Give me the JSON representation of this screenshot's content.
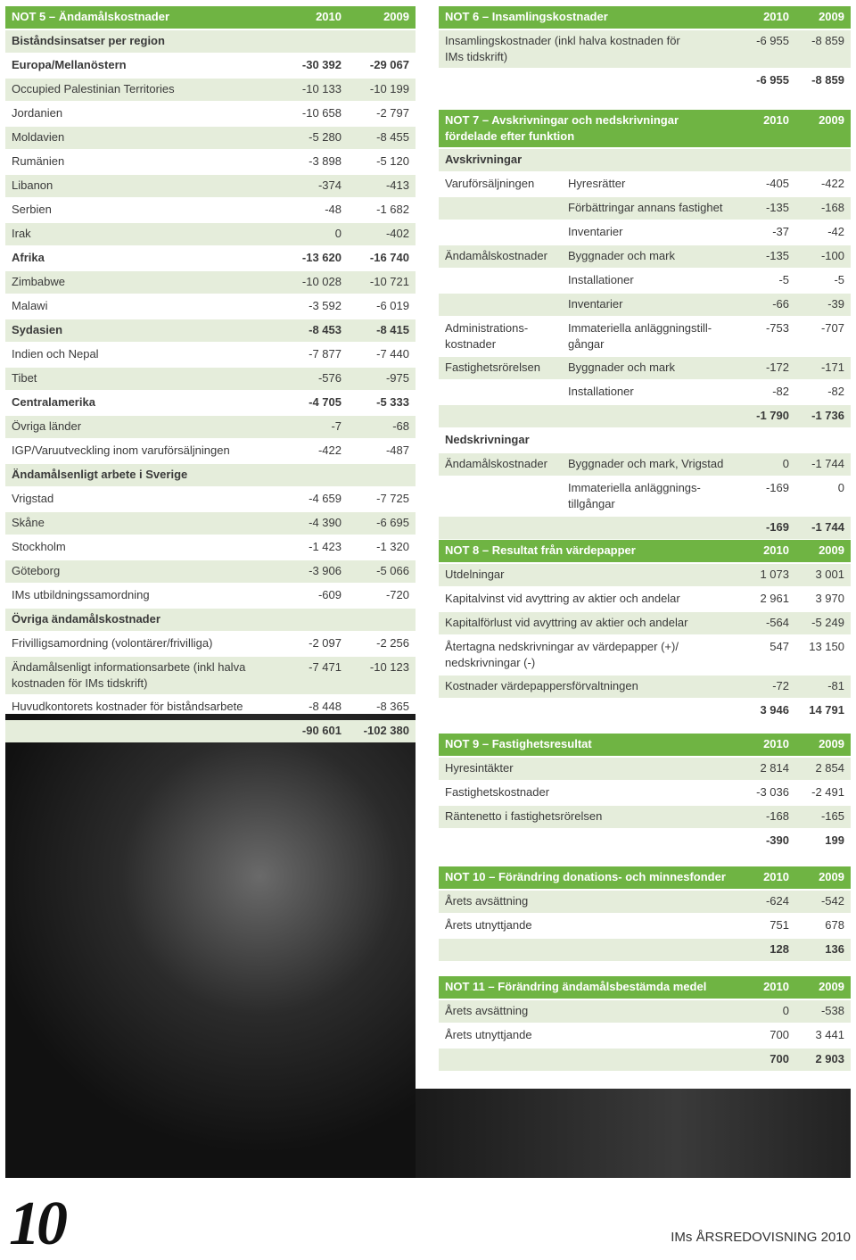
{
  "not5": {
    "title": "NOT 5 – Ändamålskostnader",
    "years": [
      "2010",
      "2009"
    ],
    "rows": [
      {
        "label": "Biståndsinsatser per region",
        "bold": true
      },
      {
        "label": "Europa/Mellanöstern",
        "values": [
          "-30 392",
          "-29 067"
        ],
        "bold": true
      },
      {
        "label": "Occupied Palestinian Territories",
        "values": [
          "-10 133",
          "-10 199"
        ]
      },
      {
        "label": "Jordanien",
        "values": [
          "-10 658",
          "-2 797"
        ]
      },
      {
        "label": "Moldavien",
        "values": [
          "-5 280",
          "-8 455"
        ]
      },
      {
        "label": "Rumänien",
        "values": [
          "-3 898",
          "-5 120"
        ]
      },
      {
        "label": "Libanon",
        "values": [
          "-374",
          "-413"
        ]
      },
      {
        "label": "Serbien",
        "values": [
          "-48",
          "-1 682"
        ]
      },
      {
        "label": "Irak",
        "values": [
          "0",
          "-402"
        ]
      },
      {
        "label": "Afrika",
        "values": [
          "-13 620",
          "-16 740"
        ],
        "bold": true
      },
      {
        "label": "Zimbabwe",
        "values": [
          "-10 028",
          "-10 721"
        ]
      },
      {
        "label": "Malawi",
        "values": [
          "-3 592",
          "-6 019"
        ]
      },
      {
        "label": "Sydasien",
        "values": [
          "-8 453",
          "-8 415"
        ],
        "bold": true
      },
      {
        "label": "Indien och Nepal",
        "values": [
          "-7 877",
          "-7 440"
        ]
      },
      {
        "label": "Tibet",
        "values": [
          "-576",
          "-975"
        ]
      },
      {
        "label": "Centralamerika",
        "values": [
          "-4 705",
          "-5 333"
        ],
        "bold": true
      },
      {
        "label": "Övriga länder",
        "values": [
          "-7",
          "-68"
        ]
      },
      {
        "label": "IGP/Varuutveckling inom varuförsäljningen",
        "values": [
          "-422",
          "-487"
        ]
      },
      {
        "label": "Ändamålsenligt arbete i Sverige",
        "bold": true
      },
      {
        "label": "Vrigstad",
        "values": [
          "-4 659",
          "-7 725"
        ]
      },
      {
        "label": "Skåne",
        "values": [
          "-4 390",
          "-6 695"
        ]
      },
      {
        "label": "Stockholm",
        "values": [
          "-1 423",
          "-1 320"
        ]
      },
      {
        "label": "Göteborg",
        "values": [
          "-3 906",
          "-5 066"
        ]
      },
      {
        "label": "IMs utbildningssamordning",
        "values": [
          "-609",
          "-720"
        ]
      },
      {
        "label": "Övriga ändamålskostnader",
        "bold": true
      },
      {
        "label": "Frivilligsamordning (volontärer/frivilliga)",
        "values": [
          "-2 097",
          "-2 256"
        ]
      },
      {
        "label": "Ändamålsenligt informationsarbete (inkl halva kostnaden för IMs tidskrift)",
        "values": [
          "-7 471",
          "-10 123"
        ]
      },
      {
        "label": "Huvudkontorets kostnader för biståndsarbete",
        "values": [
          "-8 448",
          "-8 365"
        ]
      },
      {
        "values": [
          "-90 601",
          "-102 380"
        ],
        "bold": true
      }
    ]
  },
  "not6": {
    "title": "NOT 6 – Insamlingskostnader",
    "years": [
      "2010",
      "2009"
    ],
    "rows": [
      {
        "label": "Insamlingskostnader (inkl halva kostnaden för IMs tidskrift)",
        "values": [
          "-6 955",
          "-8 859"
        ]
      },
      {
        "values": [
          "-6 955",
          "-8 859"
        ],
        "bold": true
      }
    ]
  },
  "not7": {
    "title": "NOT 7 – Avskrivningar och nedskrivningar fördelade efter funktion",
    "years": [
      "2010",
      "2009"
    ],
    "rows": [
      {
        "label": "Avskrivningar",
        "bold": true
      },
      {
        "group": "Varuförsäljningen",
        "label": "Hyresrätter",
        "values": [
          "-405",
          "-422"
        ]
      },
      {
        "label": "Förbättringar annans fastighet",
        "values": [
          "-135",
          "-168"
        ]
      },
      {
        "label": "Inventarier",
        "values": [
          "-37",
          "-42"
        ]
      },
      {
        "group": "Ändamålskostnader",
        "label": "Byggnader och mark",
        "values": [
          "-135",
          "-100"
        ]
      },
      {
        "label": "Installationer",
        "values": [
          "-5",
          "-5"
        ]
      },
      {
        "label": "Inventarier",
        "values": [
          "-66",
          "-39"
        ]
      },
      {
        "group": "Administrations-kostnader",
        "label": "Immateriella anläggningstill-gångar",
        "values": [
          "-753",
          "-707"
        ]
      },
      {
        "group": "Fastighetsrörelsen",
        "label": "Byggnader och mark",
        "values": [
          "-172",
          "-171"
        ]
      },
      {
        "label": "Installationer",
        "values": [
          "-82",
          "-82"
        ]
      },
      {
        "values": [
          "-1 790",
          "-1 736"
        ],
        "bold": true
      },
      {
        "label": "Nedskrivningar",
        "bold": true
      },
      {
        "group": "Ändamålskostnader",
        "label": "Byggnader och mark, Vrigstad",
        "values": [
          "0",
          "-1 744"
        ]
      },
      {
        "label": "Immateriella anläggnings-tillgångar",
        "values": [
          "-169",
          "0"
        ]
      },
      {
        "values": [
          "-169",
          "-1 744"
        ],
        "bold": true
      }
    ]
  },
  "not8": {
    "title": "NOT 8 – Resultat från värdepapper",
    "years": [
      "2010",
      "2009"
    ],
    "rows": [
      {
        "label": "Utdelningar",
        "values": [
          "1 073",
          "3 001"
        ]
      },
      {
        "label": "Kapitalvinst vid avyttring av aktier och andelar",
        "values": [
          "2 961",
          "3 970"
        ]
      },
      {
        "label": "Kapitalförlust vid avyttring av aktier och andelar",
        "values": [
          "-564",
          "-5 249"
        ]
      },
      {
        "label": "Återtagna nedskrivningar av värdepapper (+)/ nedskrivningar (-)",
        "values": [
          "547",
          "13 150"
        ]
      },
      {
        "label": "Kostnader värdepappersförvaltningen",
        "values": [
          "-72",
          "-81"
        ]
      },
      {
        "values": [
          "3 946",
          "14 791"
        ],
        "bold": true
      }
    ]
  },
  "not9": {
    "title": "NOT 9 – Fastighetsresultat",
    "years": [
      "2010",
      "2009"
    ],
    "rows": [
      {
        "label": "Hyresintäkter",
        "values": [
          "2 814",
          "2 854"
        ]
      },
      {
        "label": "Fastighetskostnader",
        "values": [
          "-3 036",
          "-2 491"
        ]
      },
      {
        "label": "Räntenetto i fastighetsrörelsen",
        "values": [
          "-168",
          "-165"
        ]
      },
      {
        "values": [
          "-390",
          "199"
        ],
        "bold": true
      }
    ]
  },
  "not10": {
    "title": "NOT 10 – Förändring donations- och minnesfonder",
    "years": [
      "2010",
      "2009"
    ],
    "rows": [
      {
        "label": "Årets avsättning",
        "values": [
          "-624",
          "-542"
        ]
      },
      {
        "label": "Årets utnyttjande",
        "values": [
          "751",
          "678"
        ]
      },
      {
        "values": [
          "128",
          "136"
        ],
        "bold": true
      }
    ]
  },
  "not11": {
    "title": "NOT 11 – Förändring ändamålsbestämda medel",
    "years": [
      "2010",
      "2009"
    ],
    "rows": [
      {
        "label": "Årets avsättning",
        "values": [
          "0",
          "-538"
        ]
      },
      {
        "label": "Årets utnyttjande",
        "values": [
          "700",
          "3 441"
        ]
      },
      {
        "values": [
          "700",
          "2 903"
        ],
        "bold": true
      }
    ]
  },
  "footer": {
    "page": "10",
    "publication": "IMs ÅRSREDOVISNING 2010"
  }
}
